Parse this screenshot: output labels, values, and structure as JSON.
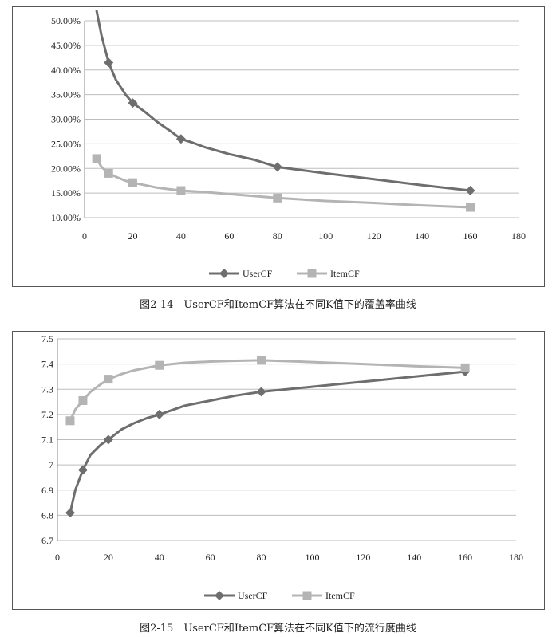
{
  "chart_data": [
    {
      "type": "line",
      "title": "",
      "xlabel": "",
      "ylabel": "",
      "xlim": [
        0,
        180
      ],
      "ylim": [
        10,
        50
      ],
      "x_ticks": [
        "0",
        "20",
        "40",
        "60",
        "80",
        "100",
        "120",
        "140",
        "160",
        "180"
      ],
      "y_ticks": [
        "10.00%",
        "15.00%",
        "20.00%",
        "25.00%",
        "30.00%",
        "35.00%",
        "40.00%",
        "45.00%",
        "50.00%"
      ],
      "grid": "horizontal",
      "legend": "bottom",
      "series": [
        {
          "name": "UserCF",
          "color": "#6e6e6e",
          "marker": "diamond",
          "x": [
            5,
            10,
            20,
            40,
            80,
            160
          ],
          "y": [
            52.0,
            41.5,
            33.3,
            26.0,
            20.3,
            15.5
          ],
          "curve_x": [
            5,
            7,
            10,
            13,
            17,
            20,
            25,
            30,
            35,
            40,
            45,
            50,
            55,
            60,
            70,
            80,
            100,
            120,
            140,
            160
          ],
          "curve_y": [
            52.0,
            47.0,
            41.5,
            38.0,
            35.0,
            33.3,
            31.5,
            29.5,
            27.8,
            26.0,
            25.2,
            24.3,
            23.6,
            22.9,
            21.8,
            20.3,
            19.0,
            17.8,
            16.6,
            15.5
          ]
        },
        {
          "name": "ItemCF",
          "color": "#b4b4b4",
          "marker": "square",
          "x": [
            5,
            10,
            20,
            40,
            80,
            160
          ],
          "y": [
            22.0,
            19.0,
            17.1,
            15.5,
            14.0,
            12.1
          ],
          "curve_x": [
            5,
            7,
            10,
            13,
            17,
            20,
            25,
            30,
            35,
            40,
            50,
            60,
            70,
            80,
            100,
            120,
            140,
            160
          ],
          "curve_y": [
            22.0,
            20.3,
            19.0,
            18.3,
            17.5,
            17.1,
            16.6,
            16.1,
            15.8,
            15.5,
            15.2,
            14.8,
            14.4,
            14.0,
            13.4,
            13.0,
            12.5,
            12.1
          ]
        }
      ]
    },
    {
      "type": "line",
      "title": "",
      "xlabel": "",
      "ylabel": "",
      "xlim": [
        0,
        180
      ],
      "ylim": [
        6.7,
        7.5
      ],
      "x_ticks": [
        "0",
        "20",
        "40",
        "60",
        "80",
        "100",
        "120",
        "140",
        "160",
        "180"
      ],
      "y_ticks": [
        "6.7",
        "6.8",
        "6.9",
        "7",
        "7.1",
        "7.2",
        "7.3",
        "7.4",
        "7.5"
      ],
      "grid": "horizontal",
      "legend": "bottom",
      "series": [
        {
          "name": "UserCF",
          "color": "#6e6e6e",
          "marker": "diamond",
          "x": [
            5,
            10,
            20,
            40,
            80,
            160
          ],
          "y": [
            6.81,
            6.98,
            7.1,
            7.2,
            7.29,
            7.37
          ],
          "curve_x": [
            5,
            7,
            10,
            13,
            17,
            20,
            25,
            30,
            35,
            40,
            50,
            60,
            70,
            80,
            90,
            100,
            110,
            120,
            130,
            140,
            150,
            160
          ],
          "curve_y": [
            6.81,
            6.9,
            6.98,
            7.04,
            7.08,
            7.1,
            7.14,
            7.165,
            7.185,
            7.2,
            7.235,
            7.255,
            7.275,
            7.29,
            7.3,
            7.31,
            7.32,
            7.33,
            7.34,
            7.35,
            7.36,
            7.37
          ]
        },
        {
          "name": "ItemCF",
          "color": "#b4b4b4",
          "marker": "square",
          "x": [
            5,
            10,
            20,
            40,
            80,
            160
          ],
          "y": [
            7.175,
            7.255,
            7.34,
            7.395,
            7.415,
            7.385
          ],
          "curve_x": [
            5,
            7,
            10,
            13,
            17,
            20,
            25,
            30,
            35,
            40,
            50,
            60,
            70,
            80,
            100,
            120,
            140,
            160
          ],
          "curve_y": [
            7.175,
            7.22,
            7.255,
            7.29,
            7.32,
            7.34,
            7.36,
            7.375,
            7.385,
            7.395,
            7.405,
            7.41,
            7.413,
            7.415,
            7.408,
            7.4,
            7.392,
            7.385
          ]
        }
      ]
    }
  ],
  "captions": {
    "fig1": "图2-14　UserCF和ItemCF算法在不同K值下的覆盖率曲线",
    "fig2": "图2-15　UserCF和ItemCF算法在不同K值下的流行度曲线"
  }
}
